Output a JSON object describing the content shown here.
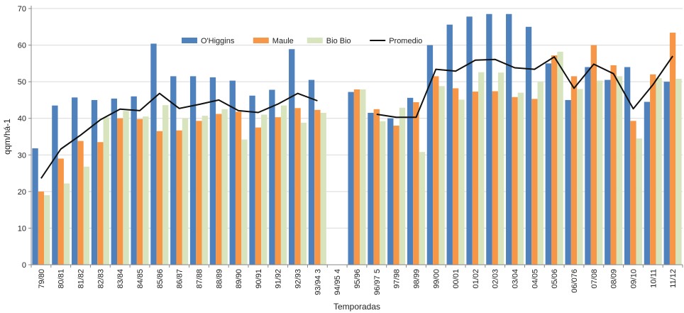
{
  "chart_data": {
    "type": "bar",
    "xlabel": "Temporadas",
    "ylabel": "qqm/há-1",
    "ylim": [
      0,
      70
    ],
    "yticks": [
      0,
      10,
      20,
      30,
      40,
      50,
      60,
      70
    ],
    "grid": true,
    "legend_position": "top-center",
    "categories": [
      "79/80",
      "80/81",
      "81/82",
      "82/83",
      "83/84",
      "84/85",
      "85/86",
      "86/87",
      "87/88",
      "88/89",
      "89/90",
      "90/91",
      "91/92",
      "92/93",
      "93/94 3",
      "94/95 4",
      "95/96",
      "96/97 5",
      "97/98",
      "98/99",
      "99/00",
      "00/01",
      "01/02",
      "02/03",
      "03/04",
      "04/05",
      "05/06",
      "06/076",
      "07/08",
      "08/09",
      "09/10",
      "10/11",
      "11/12"
    ],
    "series": [
      {
        "name": "O'Higgins",
        "kind": "bar",
        "color": "#4f81bd",
        "values": [
          31.8,
          43.5,
          45.7,
          45.0,
          45.4,
          46.0,
          60.4,
          51.5,
          51.5,
          51.2,
          50.3,
          46.2,
          47.8,
          58.9,
          50.5,
          null,
          47.2,
          41.5,
          40.0,
          45.6,
          60.0,
          65.6,
          67.8,
          68.5,
          68.5,
          65.0,
          55.0,
          45.0,
          54.0,
          50.5,
          54.0,
          44.5,
          50.0
        ]
      },
      {
        "name": "Maule",
        "kind": "bar",
        "color": "#f79646",
        "values": [
          20.0,
          29.0,
          33.8,
          33.5,
          40.0,
          39.8,
          36.5,
          36.7,
          39.3,
          41.2,
          41.8,
          37.5,
          40.3,
          42.8,
          42.3,
          null,
          47.9,
          42.5,
          38.0,
          44.4,
          51.5,
          48.2,
          47.3,
          47.4,
          45.8,
          45.3,
          57.2,
          51.5,
          60.0,
          54.5,
          39.3,
          52.0,
          63.4
        ]
      },
      {
        "name": "Bio Bio",
        "kind": "bar",
        "color": "#d7e4bd",
        "values": [
          19.0,
          22.2,
          26.8,
          40.3,
          42.0,
          40.5,
          43.6,
          40.0,
          40.7,
          42.5,
          34.2,
          41.0,
          43.5,
          38.8,
          41.5,
          null,
          47.9,
          39.2,
          42.9,
          30.8,
          48.8,
          45.1,
          52.6,
          52.5,
          47.0,
          50.0,
          58.2,
          48.0,
          50.3,
          51.5,
          34.5,
          51.0,
          50.8
        ]
      },
      {
        "name": "Promedio",
        "kind": "line",
        "color": "#111111",
        "values": [
          23.6,
          31.6,
          35.4,
          39.6,
          42.5,
          42.1,
          46.8,
          42.7,
          43.8,
          45.0,
          42.1,
          41.6,
          43.9,
          46.8,
          44.8,
          null,
          null,
          41.1,
          40.3,
          40.3,
          53.4,
          52.9,
          55.9,
          56.1,
          53.8,
          53.4,
          56.8,
          48.2,
          54.8,
          52.2,
          42.6,
          49.2,
          57.0
        ]
      }
    ]
  }
}
